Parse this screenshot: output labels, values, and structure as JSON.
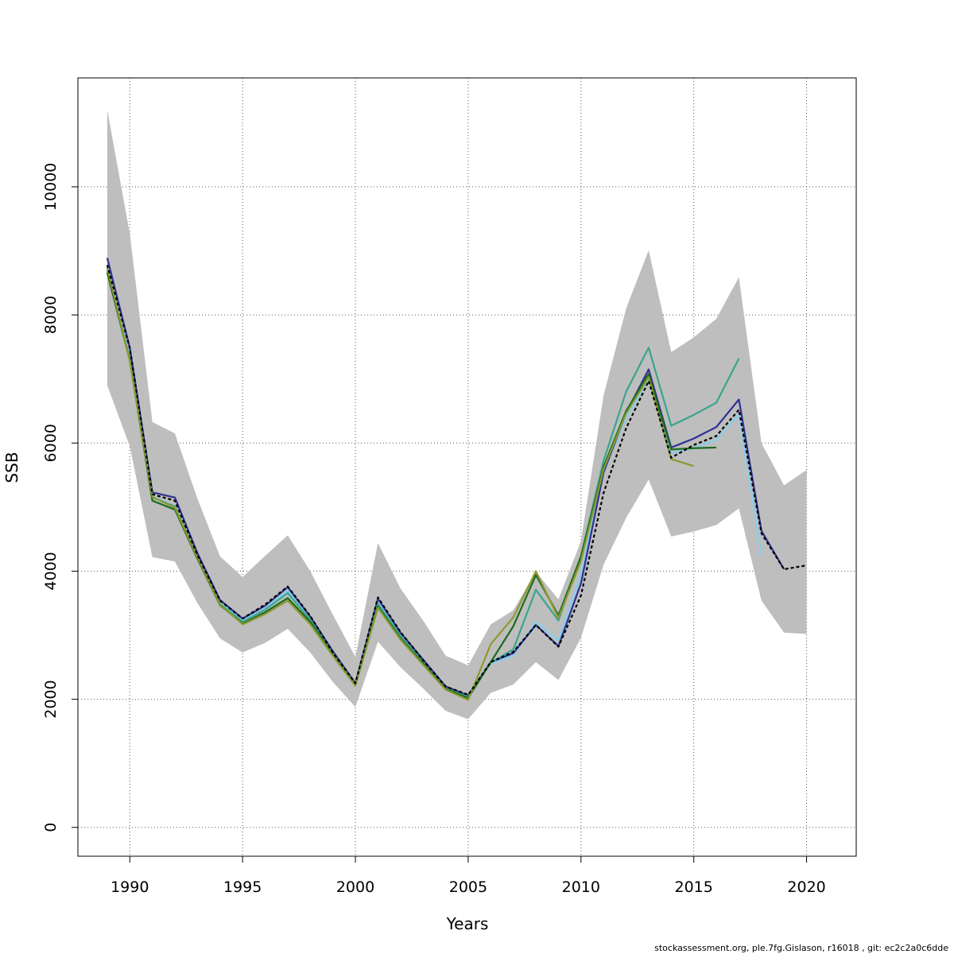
{
  "chart_data": {
    "type": "line",
    "xlabel": "Years",
    "ylabel": "SSB",
    "xlim": [
      1987.7,
      2022.2
    ],
    "ylim": [
      -450,
      11700
    ],
    "xticks": [
      1990,
      1995,
      2000,
      2005,
      2010,
      2015,
      2020
    ],
    "yticks": [
      0,
      2000,
      4000,
      6000,
      8000,
      10000
    ],
    "grid": true,
    "confidence_band": {
      "color": "#bebebe",
      "x": [
        1989,
        1990,
        1991,
        1992,
        1993,
        1994,
        1995,
        1996,
        1997,
        1998,
        1999,
        2000,
        2001,
        2002,
        2003,
        2004,
        2005,
        2006,
        2007,
        2008,
        2009,
        2010,
        2011,
        2012,
        2013,
        2014,
        2015,
        2016,
        2017,
        2018,
        2019,
        2020
      ],
      "lower": [
        6900,
        5950,
        4220,
        4150,
        3500,
        2950,
        2730,
        2880,
        3100,
        2730,
        2270,
        1880,
        2900,
        2500,
        2170,
        1820,
        1690,
        2100,
        2230,
        2580,
        2300,
        2960,
        4100,
        4830,
        5430,
        4540,
        4620,
        4720,
        4980,
        3540,
        3040,
        3020
      ],
      "upper": [
        11200,
        9270,
        6330,
        6150,
        5130,
        4230,
        3910,
        4240,
        4560,
        4000,
        3320,
        2660,
        4440,
        3730,
        3230,
        2680,
        2530,
        3170,
        3390,
        3990,
        3560,
        4470,
        6740,
        8100,
        9010,
        7420,
        7650,
        7940,
        8590,
        6000,
        5340,
        5580
      ]
    },
    "series": [
      {
        "color": "#000000",
        "dashed": true,
        "x": [
          1989,
          1990,
          1991,
          1992,
          1993,
          1994,
          1995,
          1996,
          1997,
          1998,
          1999,
          2000,
          2001,
          2002,
          2003,
          2004,
          2005,
          2006,
          2007,
          2008,
          2009,
          2010,
          2011,
          2012,
          2013,
          2014,
          2015,
          2016,
          2017,
          2018,
          2019,
          2020
        ],
        "values": [
          8780,
          7480,
          5200,
          5100,
          4250,
          3540,
          3260,
          3480,
          3760,
          3300,
          2730,
          2250,
          3590,
          3050,
          2610,
          2200,
          2070,
          2580,
          2740,
          3160,
          2820,
          3620,
          5220,
          6230,
          6970,
          5770,
          5970,
          6110,
          6520,
          4590,
          4030,
          4090
        ]
      },
      {
        "color": "#87ceeb",
        "x": [
          1989,
          1990,
          1991,
          1992,
          1993,
          1994,
          1995,
          1996,
          1997,
          1998,
          1999,
          2000,
          2001,
          2002,
          2003,
          2004,
          2005,
          2006,
          2007,
          2008,
          2009,
          2010,
          2011,
          2012,
          2013,
          2014,
          2015,
          2016,
          2017,
          2018
        ],
        "values": [
          8730,
          7340,
          5170,
          5010,
          4230,
          3510,
          3230,
          3420,
          3700,
          3260,
          2720,
          2240,
          3530,
          3010,
          2590,
          2180,
          2040,
          2560,
          2680,
          3210,
          2920,
          3950,
          5550,
          6390,
          7000,
          5840,
          5920,
          6050,
          6450,
          4250
        ]
      },
      {
        "color": "#2e3192",
        "x": [
          1989,
          1990,
          1991,
          1992,
          1993,
          1994,
          1995,
          1996,
          1997,
          1998,
          1999,
          2000,
          2001,
          2002,
          2003,
          2004,
          2005,
          2006,
          2007,
          2008,
          2009,
          2010,
          2011,
          2012,
          2013,
          2014,
          2015,
          2016,
          2017,
          2018,
          2019
        ],
        "values": [
          8890,
          7490,
          5230,
          5150,
          4280,
          3550,
          3260,
          3460,
          3750,
          3290,
          2750,
          2250,
          3570,
          3040,
          2620,
          2200,
          2060,
          2580,
          2720,
          3160,
          2830,
          3810,
          5540,
          6470,
          7150,
          5930,
          6070,
          6250,
          6680,
          4630,
          4030
        ]
      },
      {
        "color": "#3aa58c",
        "x": [
          1989,
          1990,
          1991,
          1992,
          1993,
          1994,
          1995,
          1996,
          1997,
          1998,
          1999,
          2000,
          2001,
          2002,
          2003,
          2004,
          2005,
          2006,
          2007,
          2008,
          2009,
          2010,
          2011,
          2012,
          2013,
          2014,
          2015,
          2016,
          2017
        ],
        "values": [
          8700,
          7320,
          5150,
          5010,
          4220,
          3490,
          3210,
          3400,
          3660,
          3240,
          2710,
          2230,
          3490,
          2990,
          2580,
          2170,
          2040,
          2570,
          2780,
          3710,
          3230,
          4240,
          5720,
          6800,
          7490,
          6270,
          6440,
          6630,
          7320
        ]
      },
      {
        "color": "#1d6b1d",
        "x": [
          1989,
          1990,
          1991,
          1992,
          1993,
          1994,
          1995,
          1996,
          1997,
          1998,
          1999,
          2000,
          2001,
          2002,
          2003,
          2004,
          2005,
          2006,
          2007,
          2008,
          2009,
          2010,
          2011,
          2012,
          2013,
          2014,
          2015,
          2016
        ],
        "values": [
          8660,
          7290,
          5100,
          4960,
          4190,
          3470,
          3180,
          3360,
          3580,
          3210,
          2690,
          2220,
          3450,
          2950,
          2560,
          2160,
          2020,
          2580,
          3140,
          3940,
          3310,
          4230,
          5630,
          6500,
          7080,
          5900,
          5920,
          5930
        ]
      },
      {
        "color": "#8c9a2e",
        "x": [
          1989,
          1990,
          1991,
          1992,
          1993,
          1994,
          1995,
          1996,
          1997,
          1998,
          1999,
          2000,
          2001,
          2002,
          2003,
          2004,
          2005,
          2006,
          2007,
          2008,
          2009,
          2010,
          2011,
          2012,
          2013,
          2014,
          2015
        ],
        "values": [
          8740,
          7280,
          5160,
          4990,
          4210,
          3480,
          3170,
          3330,
          3540,
          3170,
          2680,
          2210,
          3430,
          2930,
          2540,
          2150,
          1990,
          2860,
          3280,
          4000,
          3270,
          4160,
          5590,
          6460,
          7030,
          5750,
          5640
        ]
      }
    ],
    "footer": "stockassessment.org, ple.7fg.Gislason, r16018 , git: ec2c2a0c6dde"
  }
}
